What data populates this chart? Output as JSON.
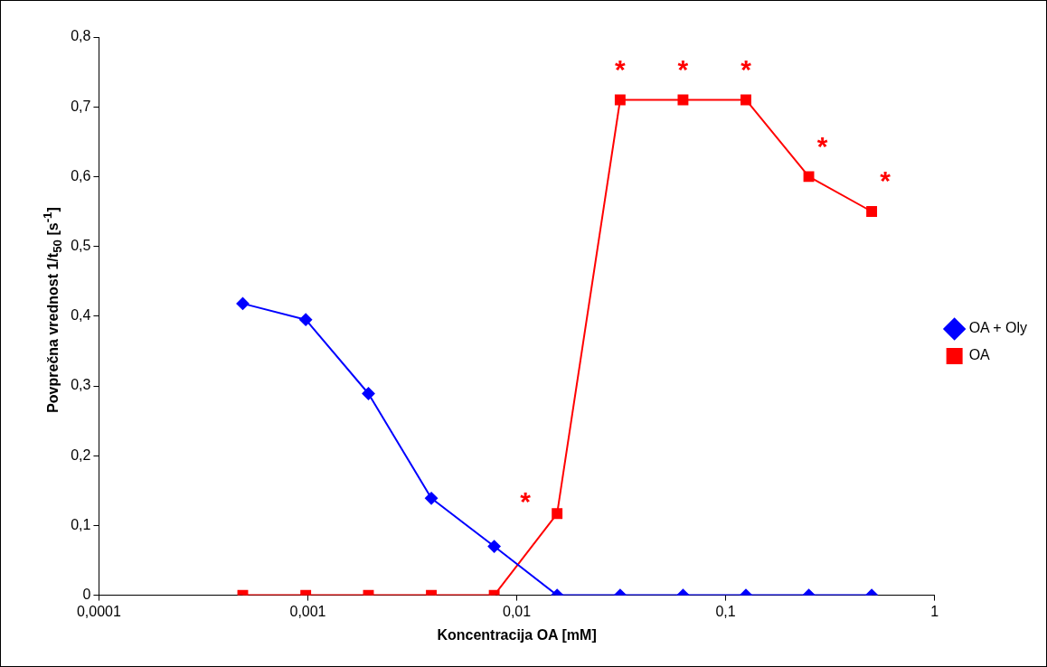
{
  "chart_data": {
    "type": "line",
    "xlabel": "Koncentracija OA [mM]",
    "ylabel": "Povprečna vrednost 1/t$_{50}$ [s$^{-1}$]",
    "x": [
      0.000488,
      0.000977,
      0.00195,
      0.0039,
      0.0078,
      0.0156,
      0.03125,
      0.0625,
      0.125,
      0.25,
      0.5
    ],
    "series": [
      {
        "name": "OA + Oly",
        "color": "#0000ff",
        "marker": "diamond",
        "values": [
          0.418,
          0.395,
          0.289,
          0.139,
          0.07,
          0,
          0,
          0,
          0,
          0,
          0
        ]
      },
      {
        "name": "OA",
        "color": "#ff0000",
        "marker": "square",
        "values": [
          0,
          0,
          0,
          0,
          0,
          0.117,
          0.71,
          0.71,
          0.71,
          0.6,
          0.55
        ]
      }
    ],
    "log": "x",
    "xlim": [
      0.0001,
      1
    ],
    "xticks": [
      {
        "value": 0.0001,
        "label": "0,0001"
      },
      {
        "value": 0.001,
        "label": "0,001"
      },
      {
        "value": 0.01,
        "label": "0,01"
      },
      {
        "value": 0.1,
        "label": "0,1"
      },
      1
    ],
    "ylim": [
      0,
      0.8
    ],
    "yticks": [
      0,
      {
        "value": 0.1,
        "label": "0,1"
      },
      {
        "value": 0.2,
        "label": "0,2"
      },
      {
        "value": 0.3,
        "label": "0,3"
      },
      {
        "value": 0.4,
        "label": "0,4"
      },
      {
        "value": 0.5,
        "label": "0,5"
      },
      {
        "value": 0.6,
        "label": "0,6"
      },
      {
        "value": 0.7,
        "label": "0,7"
      },
      {
        "value": 0.8,
        "label": "0,8"
      }
    ],
    "grid": false,
    "legend": "right",
    "line_style": "solid",
    "annotations": [
      {
        "text": "*",
        "x": 0.0156,
        "y": 0.117
      },
      {
        "text": "*",
        "x": 0.03125,
        "y": 0.71
      },
      {
        "text": "*",
        "x": 0.0625,
        "y": 0.71
      },
      {
        "text": "*",
        "x": 0.125,
        "y": 0.71
      },
      {
        "text": "*",
        "x": 0.25,
        "y": 0.6
      },
      {
        "text": "*",
        "x": 0.5,
        "y": 0.55
      }
    ]
  }
}
